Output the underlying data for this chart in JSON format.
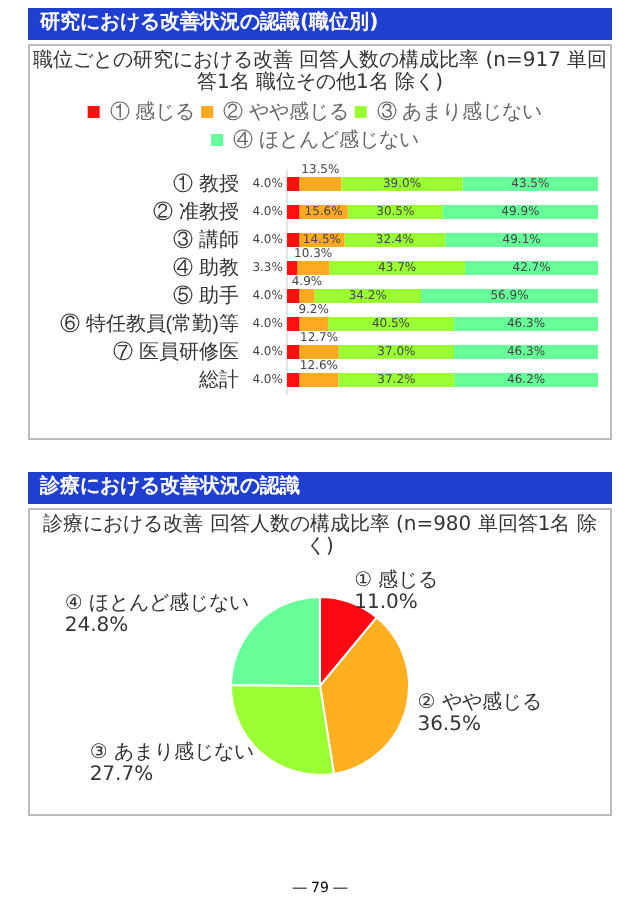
{
  "chart_data": [
    {
      "type": "bar",
      "title": "研究における改善状況の認識(職位別)",
      "subtitle": "職位ごとの研究における改善 回答人数の構成比率 (n=917 単回答1名 職位その他1名 除く)",
      "orientation": "horizontal",
      "stacked": true,
      "legend": "top",
      "tick_labels": "y",
      "xlim": [
        0,
        100
      ],
      "categories": [
        "① 教授",
        "② 准教授",
        "③ 講師",
        "④ 助教",
        "⑤ 助手",
        "⑥ 特任教員(常勤)等",
        "⑦ 医員研修医",
        "総計"
      ],
      "series": [
        {
          "name": "① 感じる",
          "color": "#ff1010",
          "values": [
            4.0,
            4.0,
            4.0,
            3.3,
            4.0,
            4.0,
            4.0,
            4.0
          ],
          "value_labels": [
            "4.0%",
            "4.0%",
            "4.0%",
            "3.3%",
            "4.0%",
            "4.0%",
            "4.0%",
            "4.0%"
          ]
        },
        {
          "name": "② やや感じる",
          "color": "#ffaa22",
          "values": [
            13.5,
            15.6,
            14.5,
            10.3,
            4.9,
            9.2,
            12.7,
            12.6
          ],
          "value_labels": [
            "13.5%",
            "15.6%",
            "14.5%",
            "10.3%",
            "4.9%",
            "9.2%",
            "12.7%",
            "12.6%"
          ]
        },
        {
          "name": "③ あまり感じない",
          "color": "#99ff33",
          "values": [
            39.0,
            30.5,
            32.4,
            43.7,
            34.2,
            40.5,
            37.0,
            37.2
          ],
          "value_labels": [
            "39.0%",
            "30.5%",
            "32.4%",
            "43.7%",
            "34.2%",
            "40.5%",
            "37.0%",
            "37.2%"
          ]
        },
        {
          "name": "④ ほとんど感じない",
          "color": "#66ff99",
          "values": [
            43.5,
            49.9,
            49.1,
            42.7,
            56.9,
            46.3,
            46.3,
            46.2
          ],
          "value_labels": [
            "43.5%",
            "49.9%",
            "49.1%",
            "42.7%",
            "56.9%",
            "46.3%",
            "46.3%",
            "46.2%"
          ]
        }
      ]
    },
    {
      "type": "pie",
      "title": "診療における改善状況の認識",
      "subtitle": "診療における改善 回答人数の構成比率 (n=980 単回答1名 除く)",
      "categories": [
        "① 感じる",
        "② やや感じる",
        "③ あまり感じない",
        "④ ほとんど感じない"
      ],
      "values": [
        11.0,
        36.5,
        27.7,
        24.8
      ],
      "value_labels": [
        "11.0%",
        "36.5%",
        "27.7%",
        "24.8%"
      ],
      "colors": [
        "#ff0a14",
        "#ffb020",
        "#99ff33",
        "#66ff99"
      ],
      "annotations": [
        "― 79 ―"
      ]
    }
  ]
}
